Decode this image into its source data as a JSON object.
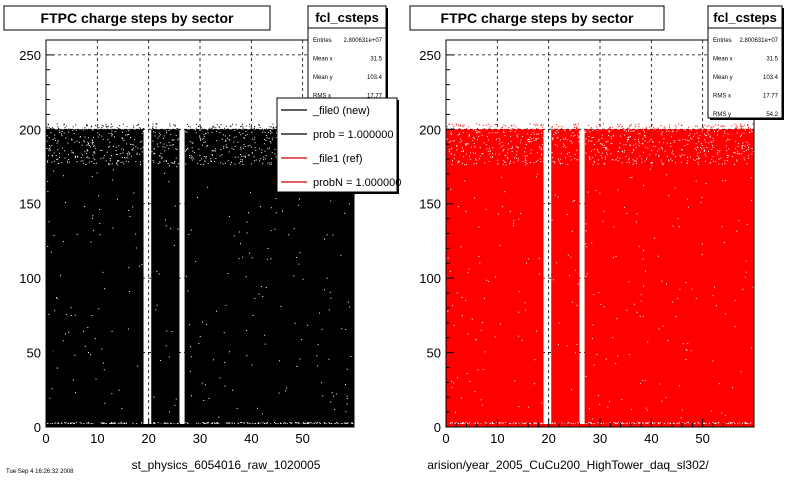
{
  "colors": {
    "hist_left": "#000000",
    "hist_right": "#ff0000",
    "background": "#ffffff",
    "legend_new": "#000000",
    "legend_ref": "#cc0000"
  },
  "left_pad": {
    "title": "FTPC charge steps by sector",
    "file_label": "st_physics_6054016_raw_1020005",
    "footer": "Tue Sep 4 16:26:32 2008"
  },
  "right_pad": {
    "title": "FTPC charge steps by sector",
    "file_label": "arision/year_2005_CuCu200_HighTower_daq_sl302/"
  },
  "stats_left": {
    "name": "fcl_csteps",
    "rows": [
      {
        "label": "Entries",
        "value": "2.800631e+07"
      },
      {
        "label": "Mean x",
        "value": "31.5"
      },
      {
        "label": "Mean y",
        "value": "103.4"
      },
      {
        "label": "RMS x",
        "value": "17.77"
      }
    ]
  },
  "stats_right": {
    "name": "fcl_csteps",
    "rows": [
      {
        "label": "Entries",
        "value": "2.800631e+07"
      },
      {
        "label": "Mean x",
        "value": "31.5"
      },
      {
        "label": "Mean y",
        "value": "103.4"
      },
      {
        "label": "RMS x",
        "value": "17.77"
      },
      {
        "label": "RMS y",
        "value": "54.2"
      }
    ]
  },
  "legend": [
    {
      "label": "_file0 (new)",
      "color": "#000000"
    },
    {
      "label": "prob = 1.000000",
      "color": "#000000"
    },
    {
      "label": "_file1 (ref)",
      "color": "#cc0000"
    },
    {
      "label": "probN = 1.000000",
      "color": "#cc0000"
    }
  ],
  "chart_data": [
    {
      "type": "heatmap",
      "title": "FTPC charge steps by sector",
      "xlabel": "",
      "ylabel": "",
      "xlim": [
        0,
        60
      ],
      "ylim": [
        0,
        260
      ],
      "x_ticks": [
        0,
        10,
        20,
        30,
        40,
        50
      ],
      "y_ticks": [
        0,
        50,
        100,
        150,
        200,
        250
      ],
      "grid": true,
      "series": [
        {
          "name": "_file0 (new)",
          "color": "#000000",
          "filled_x_ranges": [
            [
              0,
              19
            ],
            [
              20.5,
              26
            ],
            [
              27,
              60
            ]
          ],
          "y_range": [
            0,
            200
          ]
        }
      ]
    },
    {
      "type": "heatmap",
      "title": "FTPC charge steps by sector",
      "xlabel": "",
      "ylabel": "",
      "xlim": [
        0,
        60
      ],
      "ylim": [
        0,
        260
      ],
      "x_ticks": [
        0,
        10,
        20,
        30,
        40,
        50
      ],
      "y_ticks": [
        0,
        50,
        100,
        150,
        200,
        250
      ],
      "grid": true,
      "series": [
        {
          "name": "_file1 (ref)",
          "color": "#ff0000",
          "filled_x_ranges": [
            [
              0,
              19
            ],
            [
              20.5,
              26
            ],
            [
              27,
              60
            ]
          ],
          "y_range": [
            0,
            200
          ]
        }
      ]
    }
  ]
}
